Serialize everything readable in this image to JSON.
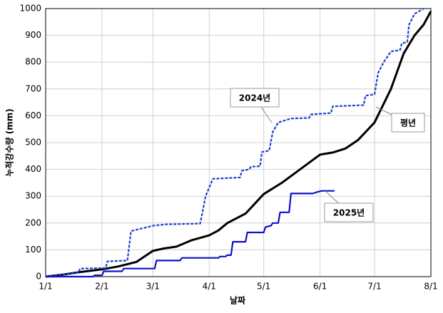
{
  "chart_data": {
    "type": "line",
    "xlabel": "날짜",
    "ylabel": "누적강수량 (mm)",
    "xlim": [
      0,
      212
    ],
    "xticks": [
      {
        "value": 0,
        "label": "1/1"
      },
      {
        "value": 31,
        "label": "2/1"
      },
      {
        "value": 59,
        "label": "3/1"
      },
      {
        "value": 90,
        "label": "4/1"
      },
      {
        "value": 120,
        "label": "5/1"
      },
      {
        "value": 151,
        "label": "6/1"
      },
      {
        "value": 181,
        "label": "7/1"
      },
      {
        "value": 212,
        "label": "8/1"
      }
    ],
    "ylim": [
      0,
      1000
    ],
    "yticks": [
      0,
      100,
      200,
      300,
      400,
      500,
      600,
      700,
      800,
      900,
      1000
    ],
    "grid": true,
    "series": [
      {
        "name": "평년",
        "color": "#000000",
        "line_style": "solid",
        "x": [
          0,
          10,
          20,
          31,
          40,
          50,
          59,
          65,
          72,
          80,
          90,
          95,
          100,
          110,
          120,
          130,
          140,
          151,
          158,
          165,
          172,
          181,
          190,
          197,
          203,
          208,
          212
        ],
        "values": [
          0,
          8,
          18,
          27,
          38,
          55,
          96,
          105,
          112,
          135,
          154,
          172,
          200,
          235,
          308,
          350,
          400,
          455,
          463,
          478,
          510,
          575,
          700,
          832,
          900,
          940,
          990
        ]
      },
      {
        "name": "2024년",
        "color": "#1a3fd1",
        "line_style": "dashed",
        "x": [
          0,
          18,
          19,
          33,
          34,
          45,
          47,
          50,
          59,
          66,
          85,
          86,
          88,
          92,
          107,
          108,
          112,
          113,
          118,
          119,
          123,
          125,
          128,
          135,
          145,
          146,
          157,
          158,
          175,
          176,
          181,
          183,
          186,
          190,
          195,
          196,
          199,
          200,
          203,
          208
        ],
        "values": [
          0,
          15,
          30,
          32,
          57,
          60,
          170,
          175,
          190,
          195,
          198,
          230,
          300,
          365,
          370,
          395,
          400,
          410,
          412,
          465,
          470,
          540,
          575,
          590,
          592,
          605,
          610,
          635,
          640,
          675,
          680,
          760,
          800,
          840,
          845,
          870,
          875,
          940,
          980,
          1000
        ]
      },
      {
        "name": "2025년",
        "color": "#1010c8",
        "line_style": "solid",
        "x": [
          0,
          26,
          27,
          31,
          32,
          42,
          43,
          60,
          61,
          74,
          75,
          95,
          96,
          99,
          100,
          102,
          103,
          110,
          111,
          120,
          121,
          124,
          125,
          128,
          129,
          134,
          135,
          147,
          149,
          152,
          159
        ],
        "values": [
          0,
          0,
          5,
          5,
          20,
          20,
          30,
          30,
          60,
          60,
          70,
          70,
          75,
          75,
          80,
          80,
          130,
          130,
          165,
          165,
          185,
          190,
          200,
          200,
          240,
          240,
          310,
          310,
          315,
          320,
          320
        ]
      }
    ]
  }
}
